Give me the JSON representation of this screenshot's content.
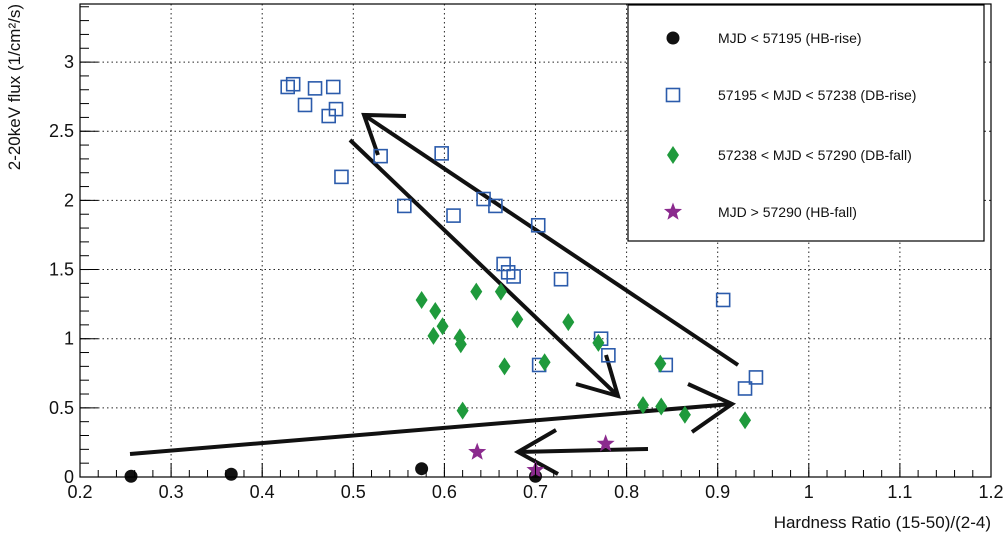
{
  "chart_data": {
    "type": "scatter",
    "xlabel": "Hardness Ratio (15-50)/(2-4)",
    "ylabel": "2-20keV flux (1/cm²/s)",
    "xlim": [
      0.2,
      1.2
    ],
    "ylim": [
      0,
      3.42
    ],
    "xticks": [
      "0.2",
      "0.3",
      "0.4",
      "0.5",
      "0.6",
      "0.7",
      "0.8",
      "0.9",
      "1",
      "1.1",
      "1.2"
    ],
    "yticks": [
      "0",
      "0.5",
      "1",
      "1.5",
      "2",
      "2.5",
      "3"
    ],
    "grid": true,
    "legend_position": "top-right",
    "series": [
      {
        "name": "MJD < 57195 (HB-rise)",
        "marker": "circle",
        "color": "#111111",
        "points": [
          [
            0.256,
            0.005
          ],
          [
            0.366,
            0.02
          ],
          [
            0.575,
            0.06
          ],
          [
            0.7,
            0.005
          ]
        ]
      },
      {
        "name": "57195 < MJD < 57238 (DB-rise)",
        "marker": "open-square",
        "color": "#2b5bab",
        "points": [
          [
            0.428,
            2.82
          ],
          [
            0.434,
            2.84
          ],
          [
            0.458,
            2.81
          ],
          [
            0.478,
            2.82
          ],
          [
            0.447,
            2.69
          ],
          [
            0.481,
            2.66
          ],
          [
            0.473,
            2.61
          ],
          [
            0.53,
            2.32
          ],
          [
            0.597,
            2.34
          ],
          [
            0.487,
            2.17
          ],
          [
            0.556,
            1.96
          ],
          [
            0.61,
            1.89
          ],
          [
            0.643,
            2.01
          ],
          [
            0.656,
            1.96
          ],
          [
            0.703,
            1.82
          ],
          [
            0.665,
            1.54
          ],
          [
            0.67,
            1.48
          ],
          [
            0.676,
            1.45
          ],
          [
            0.728,
            1.43
          ],
          [
            0.906,
            1.28
          ],
          [
            0.704,
            0.81
          ],
          [
            0.772,
            1.0
          ],
          [
            0.78,
            0.88
          ],
          [
            0.843,
            0.81
          ],
          [
            0.93,
            0.64
          ],
          [
            0.942,
            0.72
          ]
        ]
      },
      {
        "name": "57238 < MJD < 57290 (DB-fall)",
        "marker": "diamond",
        "color": "#1f9a3c",
        "points": [
          [
            0.575,
            1.28
          ],
          [
            0.59,
            1.2
          ],
          [
            0.598,
            1.09
          ],
          [
            0.588,
            1.02
          ],
          [
            0.617,
            1.01
          ],
          [
            0.618,
            0.96
          ],
          [
            0.635,
            1.34
          ],
          [
            0.662,
            1.34
          ],
          [
            0.68,
            1.14
          ],
          [
            0.736,
            1.12
          ],
          [
            0.666,
            0.8
          ],
          [
            0.71,
            0.83
          ],
          [
            0.769,
            0.97
          ],
          [
            0.62,
            0.48
          ],
          [
            0.818,
            0.52
          ],
          [
            0.837,
            0.82
          ],
          [
            0.838,
            0.51
          ],
          [
            0.864,
            0.45
          ],
          [
            0.93,
            0.41
          ]
        ]
      },
      {
        "name": "MJD > 57290 (HB-fall)",
        "marker": "star",
        "color": "#8b2a8e",
        "points": [
          [
            0.636,
            0.18
          ],
          [
            0.7,
            0.05
          ],
          [
            0.777,
            0.24
          ]
        ]
      }
    ]
  }
}
